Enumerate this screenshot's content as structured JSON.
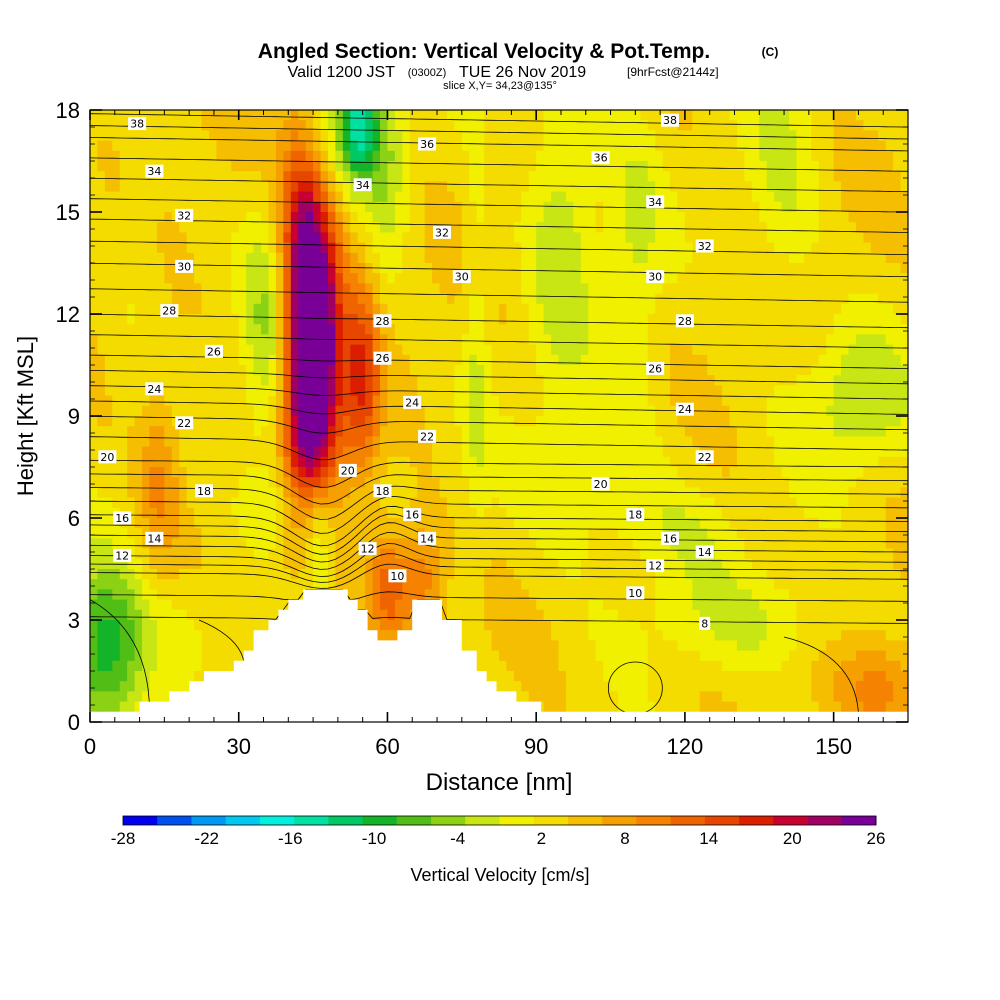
{
  "chart_data": {
    "type": "heatmap",
    "title": "Angled Section: Vertical Velocity & Pot.Temp.",
    "title_suffix": "(C)",
    "subtitle": {
      "valid": "Valid 1200 JST",
      "utc": "(0300Z)",
      "date": "TUE 26 Nov 2019",
      "forecast": "[9hrFcst@2144z]",
      "slice": "slice X,Y= 34,23@135°"
    },
    "xlabel": "Distance [nm]",
    "ylabel": "Height [Kft MSL]",
    "xlim": [
      0,
      165
    ],
    "ylim": [
      0,
      18
    ],
    "x_ticks": [
      0,
      30,
      60,
      90,
      120,
      150
    ],
    "y_ticks": [
      0,
      3,
      6,
      9,
      12,
      15,
      18
    ],
    "colorbar": {
      "label": "Vertical Velocity [cm/s]",
      "tick_labels": [
        "-28",
        "-22",
        "-16",
        "-10",
        "-4",
        "2",
        "8",
        "14",
        "20",
        "26"
      ],
      "range": [
        -28,
        26
      ],
      "colors": [
        "#0000f0",
        "#0050f0",
        "#0098f0",
        "#00c8f0",
        "#00f0e0",
        "#00e0a0",
        "#00c864",
        "#14b428",
        "#50be14",
        "#8cd214",
        "#c8e614",
        "#f0f000",
        "#f5dc00",
        "#f5be00",
        "#f5a000",
        "#f58200",
        "#f06400",
        "#e64600",
        "#dc1e00",
        "#c80032",
        "#a00064",
        "#780096"
      ]
    },
    "terrain_profile": [
      [
        0,
        0.3
      ],
      [
        10,
        0.3
      ],
      [
        10,
        0.6
      ],
      [
        16,
        0.6
      ],
      [
        16,
        0.9
      ],
      [
        20,
        0.9
      ],
      [
        20,
        1.2
      ],
      [
        23,
        1.2
      ],
      [
        23,
        1.5
      ],
      [
        29,
        1.5
      ],
      [
        29,
        1.8
      ],
      [
        31,
        1.8
      ],
      [
        31,
        2.1
      ],
      [
        33,
        2.1
      ],
      [
        33,
        2.7
      ],
      [
        36,
        2.7
      ],
      [
        36,
        3.0
      ],
      [
        38,
        3.0
      ],
      [
        38,
        3.3
      ],
      [
        40,
        3.3
      ],
      [
        40,
        3.6
      ],
      [
        43,
        3.6
      ],
      [
        43,
        3.9
      ],
      [
        52,
        3.9
      ],
      [
        52,
        3.6
      ],
      [
        54,
        3.6
      ],
      [
        54,
        3.3
      ],
      [
        56,
        3.3
      ],
      [
        56,
        2.7
      ],
      [
        58,
        2.7
      ],
      [
        58,
        2.4
      ],
      [
        62,
        2.4
      ],
      [
        62,
        2.7
      ],
      [
        65,
        2.7
      ],
      [
        65,
        3.6
      ],
      [
        71,
        3.6
      ],
      [
        71,
        3.0
      ],
      [
        75,
        3.0
      ],
      [
        75,
        2.1
      ],
      [
        78,
        2.1
      ],
      [
        78,
        1.5
      ],
      [
        80,
        1.5
      ],
      [
        80,
        1.2
      ],
      [
        82,
        1.2
      ],
      [
        82,
        0.9
      ],
      [
        86,
        0.9
      ],
      [
        86,
        0.6
      ],
      [
        91,
        0.6
      ],
      [
        91,
        0.3
      ],
      [
        165,
        0.3
      ]
    ],
    "wind_features": [
      {
        "x": 45,
        "y": 10.3,
        "sx": 4,
        "sy": 3.2,
        "value": 26
      },
      {
        "x": 44,
        "y": 12.5,
        "sx": 3,
        "sy": 3,
        "value": 12
      },
      {
        "x": 55,
        "y": 10,
        "sx": 2.5,
        "sy": 2,
        "value": 12
      },
      {
        "x": 44,
        "y": 15.5,
        "sx": 5,
        "sy": 2,
        "value": 8
      },
      {
        "x": 54,
        "y": 17.5,
        "sx": 3,
        "sy": 1.2,
        "value": -18
      },
      {
        "x": 46,
        "y": 16.5,
        "sx": 3,
        "sy": 2,
        "value": -8
      },
      {
        "x": 60,
        "y": 16.5,
        "sx": 3,
        "sy": 2,
        "value": -6
      },
      {
        "x": 36,
        "y": 11.5,
        "sx": 3.5,
        "sy": 3,
        "value": -7
      },
      {
        "x": 46,
        "y": 5.5,
        "sx": 2.5,
        "sy": 1.5,
        "value": -10
      },
      {
        "x": 39,
        "y": 6.3,
        "sx": 6,
        "sy": 0.9,
        "value": -4
      },
      {
        "x": 3,
        "y": 2.0,
        "sx": 6,
        "sy": 1.8,
        "value": -14
      },
      {
        "x": 20,
        "y": 3.0,
        "sx": 6,
        "sy": 1.2,
        "value": -3
      },
      {
        "x": 60,
        "y": 4.0,
        "sx": 3,
        "sy": 1.2,
        "value": 10
      },
      {
        "x": 67,
        "y": 4.2,
        "sx": 3,
        "sy": 1.2,
        "value": 8
      },
      {
        "x": 78,
        "y": 11,
        "sx": 2,
        "sy": 4,
        "value": -4
      },
      {
        "x": 95,
        "y": 15,
        "sx": 5,
        "sy": 3.5,
        "value": -6
      },
      {
        "x": 110,
        "y": 14,
        "sx": 4,
        "sy": 3.5,
        "value": -4
      },
      {
        "x": 155,
        "y": 9.5,
        "sx": 8,
        "sy": 1.5,
        "value": -6
      },
      {
        "x": 140,
        "y": 16,
        "sx": 5,
        "sy": 3,
        "value": -4
      },
      {
        "x": 132,
        "y": 3.0,
        "sx": 15,
        "sy": 1.0,
        "value": -4
      },
      {
        "x": 102,
        "y": 7.0,
        "sx": 10,
        "sy": 1.8,
        "value": -4
      },
      {
        "x": 120,
        "y": 5.5,
        "sx": 8,
        "sy": 1.0,
        "value": -3
      },
      {
        "x": 160,
        "y": 1.0,
        "sx": 6,
        "sy": 1.0,
        "value": 6
      },
      {
        "x": 14,
        "y": 7.2,
        "sx": 3,
        "sy": 2,
        "value": 6
      },
      {
        "x": 10,
        "y": 14,
        "sx": 4,
        "sy": 2,
        "value": -2
      }
    ],
    "theta_levels": [
      {
        "value": 8,
        "height": 3.0
      },
      {
        "value": 10,
        "height": 4.3
      },
      {
        "value": 12,
        "height": 4.8
      },
      {
        "value": 14,
        "height": 5.4
      },
      {
        "value": 16,
        "height": 6.0
      },
      {
        "value": 18,
        "height": 6.8
      },
      {
        "value": 20,
        "height": 7.6
      },
      {
        "value": 22,
        "height": 8.8
      },
      {
        "value": 24,
        "height": 9.7
      },
      {
        "value": 26,
        "height": 10.6
      },
      {
        "value": 28,
        "height": 11.8
      },
      {
        "value": 30,
        "height": 13.3
      },
      {
        "value": 32,
        "height": 14.6
      },
      {
        "value": 34,
        "height": 15.8
      },
      {
        "value": 36,
        "height": 17.0
      },
      {
        "value": 38,
        "height": 17.7
      }
    ],
    "theta_labels": [
      {
        "text": "38",
        "x": 9.5,
        "y": 17.6
      },
      {
        "text": "38",
        "x": 117,
        "y": 17.7
      },
      {
        "text": "36",
        "x": 68,
        "y": 17.0
      },
      {
        "text": "36",
        "x": 103,
        "y": 16.6
      },
      {
        "text": "34",
        "x": 13,
        "y": 16.2
      },
      {
        "text": "34",
        "x": 55,
        "y": 15.8
      },
      {
        "text": "34",
        "x": 114,
        "y": 15.3
      },
      {
        "text": "32",
        "x": 19,
        "y": 14.9
      },
      {
        "text": "32",
        "x": 71,
        "y": 14.4
      },
      {
        "text": "32",
        "x": 124,
        "y": 14.0
      },
      {
        "text": "30",
        "x": 19,
        "y": 13.4
      },
      {
        "text": "30",
        "x": 75,
        "y": 13.1
      },
      {
        "text": "30",
        "x": 114,
        "y": 13.1
      },
      {
        "text": "28",
        "x": 16,
        "y": 12.1
      },
      {
        "text": "28",
        "x": 59,
        "y": 11.8
      },
      {
        "text": "28",
        "x": 120,
        "y": 11.8
      },
      {
        "text": "26",
        "x": 25,
        "y": 10.9
      },
      {
        "text": "26",
        "x": 59,
        "y": 10.7
      },
      {
        "text": "26",
        "x": 114,
        "y": 10.4
      },
      {
        "text": "24",
        "x": 13,
        "y": 9.8
      },
      {
        "text": "24",
        "x": 65,
        "y": 9.4
      },
      {
        "text": "24",
        "x": 120,
        "y": 9.2
      },
      {
        "text": "22",
        "x": 19,
        "y": 8.8
      },
      {
        "text": "22",
        "x": 68,
        "y": 8.4
      },
      {
        "text": "22",
        "x": 124,
        "y": 7.8
      },
      {
        "text": "20",
        "x": 3.5,
        "y": 7.8
      },
      {
        "text": "20",
        "x": 52,
        "y": 7.4
      },
      {
        "text": "20",
        "x": 103,
        "y": 7.0
      },
      {
        "text": "18",
        "x": 23,
        "y": 6.8
      },
      {
        "text": "18",
        "x": 59,
        "y": 6.8
      },
      {
        "text": "18",
        "x": 110,
        "y": 6.1
      },
      {
        "text": "16",
        "x": 6.5,
        "y": 6.0
      },
      {
        "text": "16",
        "x": 65,
        "y": 6.1
      },
      {
        "text": "16",
        "x": 117,
        "y": 5.4
      },
      {
        "text": "14",
        "x": 13,
        "y": 5.4
      },
      {
        "text": "14",
        "x": 68,
        "y": 5.4
      },
      {
        "text": "14",
        "x": 124,
        "y": 5.0
      },
      {
        "text": "12",
        "x": 6.5,
        "y": 4.9
      },
      {
        "text": "12",
        "x": 56,
        "y": 5.1
      },
      {
        "text": "12",
        "x": 114,
        "y": 4.6
      },
      {
        "text": "10",
        "x": 62,
        "y": 4.3
      },
      {
        "text": "10",
        "x": 110,
        "y": 3.8
      },
      {
        "text": "8",
        "x": 124,
        "y": 2.9
      }
    ]
  }
}
